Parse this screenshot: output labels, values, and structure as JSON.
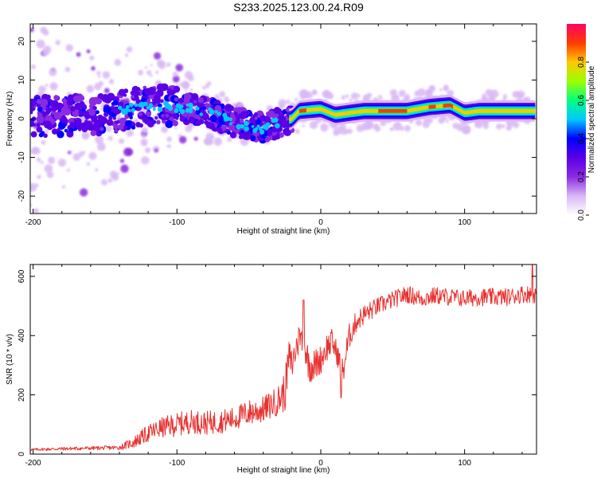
{
  "page": {
    "title": "S233.2025.123.00.24.R09"
  },
  "chart_data": [
    {
      "type": "heatmap",
      "title": "",
      "xlabel": "Height of straight line (km)",
      "ylabel": "Frequency (Hz)",
      "xlim": [
        -202,
        150
      ],
      "ylim": [
        -24.5,
        24.5
      ],
      "xticks": [
        -200,
        -100,
        0,
        100
      ],
      "xtick_labels": [
        "-200",
        "-100",
        "0",
        "100"
      ],
      "yticks": [
        -20,
        -10,
        0,
        10,
        20
      ],
      "ytick_labels": [
        "-20",
        "-10",
        "0",
        "10",
        "20"
      ],
      "grid": false,
      "colorbar": {
        "label": "Normalized spectral amplitude",
        "range": [
          0,
          1
        ],
        "ticks": [
          0.0,
          0.2,
          0.4,
          0.6,
          0.8
        ],
        "tick_labels": [
          "0.0",
          "0.2",
          "0.4",
          "0.6",
          "0.8"
        ],
        "colormap": [
          "#ffffff",
          "#d9b8f5",
          "#8a2be2",
          "#5a00e6",
          "#0000ff",
          "#00c8ff",
          "#00ff80",
          "#9cff00",
          "#ffc800",
          "#ff3c00",
          "#ff0066"
        ]
      },
      "ridge": {
        "description_points": [
          {
            "x": -200,
            "y": 0.5
          },
          {
            "x": -150,
            "y": 1.0
          },
          {
            "x": -120,
            "y": 3.5
          },
          {
            "x": -100,
            "y": 3.0
          },
          {
            "x": -80,
            "y": 2.0
          },
          {
            "x": -60,
            "y": -1.0
          },
          {
            "x": -40,
            "y": -2.5
          },
          {
            "x": -30,
            "y": -1.0
          },
          {
            "x": -20,
            "y": 0.0
          },
          {
            "x": -15,
            "y": 2.0
          },
          {
            "x": 0,
            "y": 2.5
          },
          {
            "x": 10,
            "y": 1.0
          },
          {
            "x": 20,
            "y": 1.5
          },
          {
            "x": 30,
            "y": 2.0
          },
          {
            "x": 60,
            "y": 2.0
          },
          {
            "x": 75,
            "y": 3.0
          },
          {
            "x": 90,
            "y": 3.5
          },
          {
            "x": 100,
            "y": 1.5
          },
          {
            "x": 110,
            "y": 2.0
          },
          {
            "x": 150,
            "y": 2.0
          }
        ]
      }
    },
    {
      "type": "line",
      "title": "",
      "xlabel": "Height of straight line (km)",
      "ylabel": "SNR (10 * v/v)",
      "xlim": [
        -202,
        150
      ],
      "ylim": [
        0,
        640
      ],
      "xticks": [
        -200,
        -100,
        0,
        100
      ],
      "xtick_labels": [
        "-200",
        "-100",
        "0",
        "100"
      ],
      "yticks": [
        0,
        200,
        400,
        600
      ],
      "ytick_labels": [
        "0",
        "200",
        "400",
        "600"
      ],
      "grid": false,
      "series": [
        {
          "color": "#e8322f",
          "x": [
            -202,
            -180,
            -160,
            -140,
            -130,
            -120,
            -110,
            -100,
            -90,
            -80,
            -70,
            -60,
            -50,
            -40,
            -30,
            -25,
            -22,
            -20,
            -16,
            -12,
            -8,
            -4,
            0,
            4,
            8,
            12,
            15,
            20,
            25,
            30,
            40,
            50,
            60,
            70,
            80,
            90,
            100,
            110,
            120,
            130,
            140,
            150
          ],
          "y": [
            15,
            18,
            20,
            22,
            40,
            70,
            90,
            100,
            110,
            105,
            110,
            120,
            140,
            150,
            180,
            210,
            330,
            300,
            380,
            380,
            300,
            300,
            320,
            360,
            380,
            330,
            270,
            400,
            450,
            470,
            500,
            520,
            540,
            525,
            535,
            530,
            525,
            530,
            530,
            530,
            540,
            540
          ],
          "noise": [
            4,
            6,
            6,
            8,
            20,
            30,
            35,
            40,
            40,
            40,
            40,
            40,
            45,
            45,
            50,
            70,
            60,
            55,
            60,
            55,
            60,
            55,
            50,
            50,
            45,
            40,
            60,
            45,
            35,
            35,
            30,
            30,
            30,
            30,
            30,
            30,
            30,
            30,
            30,
            30,
            30,
            30
          ],
          "spikes": [
            {
              "x": -12,
              "y": 520
            },
            {
              "x": -15,
              "y": 420
            },
            {
              "x": 147,
              "y": 640
            },
            {
              "x": 14,
              "y": 190
            }
          ]
        }
      ]
    }
  ]
}
